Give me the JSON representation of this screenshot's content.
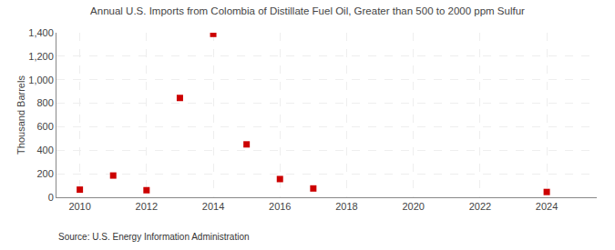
{
  "chart_data": {
    "type": "scatter",
    "title": "Annual U.S. Imports from Colombia of Distillate Fuel Oil, Greater than 500 to 2000 ppm Sulfur",
    "ylabel": "Thousand Barrels",
    "annotations": [
      "Source: U.S. Energy Information Administration"
    ],
    "x": [
      2010,
      2011,
      2012,
      2013,
      2014,
      2015,
      2016,
      2017,
      2024
    ],
    "values": [
      65,
      185,
      60,
      845,
      1390,
      450,
      155,
      75,
      45
    ],
    "color": "#cc0000",
    "marker": "square",
    "xlim": [
      2009.3,
      2025.5
    ],
    "xticks": [
      2010,
      2012,
      2014,
      2016,
      2018,
      2020,
      2022,
      2024
    ],
    "ylim": [
      0,
      1400
    ],
    "yticks": [
      0,
      200,
      400,
      600,
      800,
      {
        "value": 1000,
        "label": "1,000"
      },
      {
        "value": 1200,
        "label": "1,200"
      },
      {
        "value": 1400,
        "label": "1,400"
      }
    ],
    "grid": true
  }
}
